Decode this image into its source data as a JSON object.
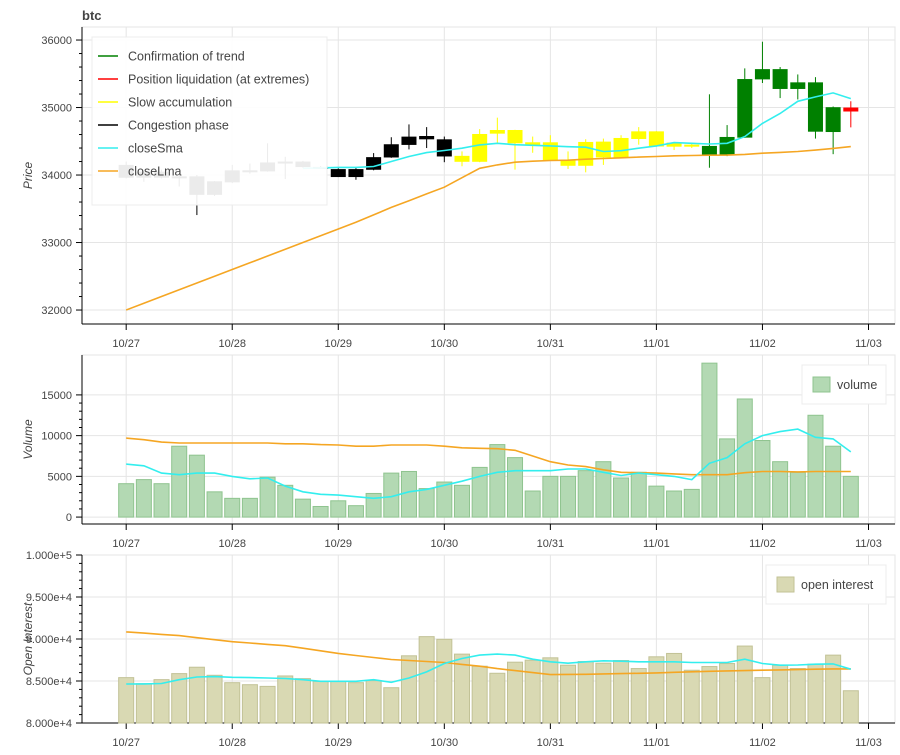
{
  "title": "btc",
  "colors": {
    "trend": "#008000",
    "liquidation": "#ff0000",
    "accumulation": "#ffff00",
    "congestion": "#000000",
    "sma": "#33eeee",
    "lma": "#f5a623",
    "volume_fill": "#b3d9b3",
    "volume_stroke": "#8fc48f",
    "oi_fill": "#d9d9b3",
    "oi_stroke": "#c2c296"
  },
  "chart_data": [
    {
      "type": "candlestick",
      "name": "price",
      "ylabel": "Price",
      "x_unit": "hours since 10/27 00:00, 4h bars",
      "xlim": [
        -10,
        174
      ],
      "ylim": [
        31793,
        36193
      ],
      "yticks": [
        32000,
        33000,
        34000,
        35000,
        36000
      ],
      "ytick_labels": [
        "32000",
        "33000",
        "34000",
        "35000",
        "36000"
      ],
      "xtick_hours": [
        0,
        24,
        48,
        72,
        96,
        120,
        144,
        168
      ],
      "xtick_labels": [
        "10/27",
        "10/28",
        "10/29",
        "10/30",
        "10/31",
        "11/01",
        "11/02",
        "11/03"
      ],
      "legend_position": "top-left",
      "legend": [
        {
          "label": "Confirmation of trend",
          "color_key": "trend"
        },
        {
          "label": "Position liquidation (at extremes)",
          "color_key": "liquidation"
        },
        {
          "label": "Slow accumulation",
          "color_key": "accumulation"
        },
        {
          "label": "Congestion phase",
          "color_key": "congestion"
        },
        {
          "label": "closeSma",
          "color_key": "sma"
        },
        {
          "label": "closeLma",
          "color_key": "lma"
        }
      ],
      "regimes": [
        "C",
        "C",
        "C",
        "C",
        "C",
        "C",
        "C",
        "C",
        "C",
        "C",
        "C",
        "C",
        "C",
        "C",
        "C",
        "C",
        "C",
        "C",
        "C",
        "S",
        "S",
        "S",
        "S",
        "S",
        "S",
        "S",
        "S",
        "S",
        "S",
        "S",
        "S",
        "S",
        "S",
        "T",
        "T",
        "T",
        "T",
        "T",
        "T",
        "T",
        "T",
        "L"
      ],
      "regime_colors": {
        "C": "congestion",
        "S": "accumulation",
        "T": "trend",
        "L": "liquidation"
      },
      "ohlc": [
        [
          34150,
          34200,
          33950,
          33960
        ],
        [
          33960,
          34050,
          33900,
          34050
        ],
        [
          34050,
          34080,
          33950,
          33960
        ],
        [
          33980,
          34000,
          33830,
          33960
        ],
        [
          33980,
          34000,
          33407,
          33706
        ],
        [
          33706,
          33910,
          33690,
          33907
        ],
        [
          33892,
          34150,
          33880,
          34069
        ],
        [
          34060,
          34170,
          34020,
          34070
        ],
        [
          34054,
          34470,
          34050,
          34186
        ],
        [
          34190,
          34270,
          33940,
          34200
        ],
        [
          34200,
          34210,
          34110,
          34118
        ],
        [
          34118,
          34130,
          34100,
          34120
        ],
        [
          34088,
          34100,
          33970,
          33970
        ],
        [
          33970,
          34110,
          33930,
          34088
        ],
        [
          34078,
          34325,
          34070,
          34265
        ],
        [
          34260,
          34560,
          34255,
          34456
        ],
        [
          34446,
          34750,
          34380,
          34569
        ],
        [
          34529,
          34710,
          34400,
          34578
        ],
        [
          34529,
          34570,
          34190,
          34275
        ],
        [
          34284,
          34350,
          34130,
          34196
        ],
        [
          34196,
          34680,
          34190,
          34608
        ],
        [
          34613,
          34850,
          34470,
          34667
        ],
        [
          34667,
          34670,
          34080,
          34470
        ],
        [
          34485,
          34570,
          34330,
          34441
        ],
        [
          34485,
          34590,
          34210,
          34216
        ],
        [
          34216,
          34350,
          34090,
          34137
        ],
        [
          34137,
          34530,
          34040,
          34490
        ],
        [
          34260,
          34540,
          34150,
          34495
        ],
        [
          34260,
          34590,
          34255,
          34549
        ],
        [
          34534,
          34710,
          34450,
          34647
        ],
        [
          34647,
          34650,
          34420,
          34422
        ],
        [
          34420,
          34490,
          34370,
          34480
        ],
        [
          34450,
          34480,
          34400,
          34420
        ],
        [
          34289,
          35196,
          34108,
          34431
        ],
        [
          34289,
          34740,
          34280,
          34564
        ],
        [
          34554,
          35580,
          34550,
          35422
        ],
        [
          35417,
          35975,
          35363,
          35569
        ],
        [
          35569,
          35600,
          35140,
          35275
        ],
        [
          35373,
          35490,
          35120,
          35275
        ],
        [
          35373,
          35450,
          34540,
          34642
        ],
        [
          35005,
          35015,
          34309,
          34637
        ],
        [
          35000,
          35093,
          34706,
          34941
        ]
      ],
      "closeSma": [
        null,
        null,
        null,
        null,
        null,
        null,
        null,
        null,
        null,
        null,
        34100,
        34105,
        34113,
        34113,
        34127,
        34200,
        34275,
        34333,
        34363,
        34397,
        34446,
        34470,
        34450,
        34441,
        34431,
        34420,
        34412,
        34348,
        34360,
        34397,
        34431,
        34480,
        34470,
        34460,
        34470,
        34569,
        34765,
        34912,
        35093,
        35157,
        35216,
        35132
      ],
      "closeLma": [
        32000,
        32100,
        32200,
        32300,
        32400,
        32500,
        32600,
        32700,
        32800,
        32900,
        33000,
        33100,
        33200,
        33300,
        33410,
        33520,
        33620,
        33720,
        33820,
        33960,
        34100,
        34150,
        34190,
        34205,
        34215,
        34220,
        34235,
        34245,
        34255,
        34265,
        34275,
        34285,
        34290,
        34294,
        34295,
        34305,
        34323,
        34335,
        34348,
        34370,
        34395,
        34421
      ]
    },
    {
      "type": "bar",
      "name": "volume",
      "ylabel": "Volume",
      "ylim": [
        -850,
        19900
      ],
      "yticks": [
        0,
        5000,
        10000,
        15000
      ],
      "ytick_labels": [
        "0",
        "5000",
        "10000",
        "15000"
      ],
      "legend_position": "top-right",
      "legend": [
        {
          "label": "volume"
        }
      ],
      "values": [
        4100,
        4600,
        4100,
        8700,
        7600,
        3100,
        2300,
        2300,
        4900,
        3900,
        2200,
        1300,
        2000,
        1400,
        2900,
        5400,
        5600,
        3500,
        4300,
        3900,
        6100,
        8900,
        7300,
        3200,
        5000,
        5000,
        5700,
        6800,
        4800,
        5500,
        3800,
        3200,
        3400,
        18900,
        9600,
        14500,
        9400,
        6800,
        5500,
        12500,
        8700,
        5000
      ],
      "sma": [
        6500,
        6300,
        5400,
        5200,
        5400,
        5400,
        5000,
        4700,
        4800,
        3800,
        3100,
        2800,
        2700,
        2500,
        2300,
        2500,
        3100,
        3400,
        3900,
        4400,
        5000,
        5500,
        5700,
        5700,
        5700,
        5900,
        5900,
        5500,
        5100,
        5400,
        5200,
        5000,
        4600,
        6600,
        7300,
        9000,
        10000,
        10500,
        10800,
        9800,
        9600,
        8000
      ],
      "lma": [
        9700,
        9500,
        9200,
        9100,
        9100,
        9100,
        9100,
        9100,
        9100,
        9000,
        9000,
        8900,
        8850,
        8700,
        8700,
        8850,
        8850,
        8850,
        8700,
        8500,
        8450,
        8400,
        8200,
        7500,
        6800,
        6400,
        6200,
        5800,
        5500,
        5450,
        5400,
        5300,
        5200,
        5200,
        5200,
        5450,
        5600,
        5600,
        5550,
        5600,
        5600,
        5600
      ]
    },
    {
      "type": "bar",
      "name": "open interest",
      "ylabel": "Open Interest",
      "ylim": [
        80000,
        100000
      ],
      "yticks": [
        80000,
        85000,
        90000,
        95000,
        100000
      ],
      "ytick_labels": [
        "8.000e+4",
        "8.500e+4",
        "9.000e+4",
        "9.500e+4",
        "1.000e+5"
      ],
      "legend_position": "top-right",
      "legend": [
        {
          "label": "open interest"
        }
      ],
      "values": [
        85400,
        84680,
        85160,
        85880,
        86640,
        85680,
        84800,
        84560,
        84360,
        85600,
        85280,
        84960,
        84960,
        84800,
        85040,
        84200,
        88000,
        90280,
        89960,
        88200,
        86760,
        85920,
        87240,
        87480,
        87760,
        86880,
        87320,
        87120,
        87440,
        86480,
        87880,
        88280,
        86280,
        86720,
        87080,
        89160,
        85400,
        86880,
        86480,
        87000,
        88080,
        83840
      ],
      "sma": [
        84640,
        84660,
        84700,
        85160,
        85480,
        85520,
        85440,
        85400,
        85360,
        85300,
        85160,
        84960,
        84960,
        84960,
        85160,
        84840,
        85360,
        86080,
        87080,
        87680,
        88080,
        88200,
        88080,
        87600,
        87280,
        87120,
        87280,
        87400,
        87360,
        87280,
        87280,
        87280,
        87200,
        87200,
        87200,
        87600,
        87080,
        86880,
        86900,
        87000,
        87040,
        86400
      ],
      "lma": [
        90840,
        90700,
        90550,
        90400,
        90160,
        89920,
        89680,
        89520,
        89360,
        89200,
        88900,
        88600,
        88280,
        88040,
        87800,
        87560,
        87440,
        87320,
        87200,
        86980,
        86760,
        86480,
        86240,
        86000,
        85760,
        85780,
        85800,
        85840,
        85880,
        85920,
        85960,
        86030,
        86100,
        86160,
        86200,
        86240,
        86280,
        86320,
        86360,
        86400,
        86440,
        86440
      ]
    }
  ]
}
